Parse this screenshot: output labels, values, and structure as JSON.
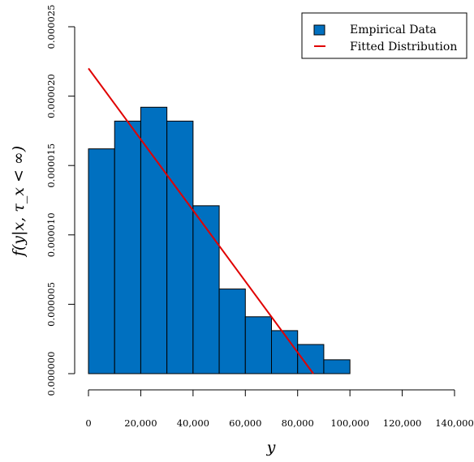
{
  "chart_data": {
    "type": "bar",
    "bin_width": 10000,
    "bins": [
      {
        "x0": 0,
        "x1": 10000,
        "density": 1.62e-05
      },
      {
        "x0": 10000,
        "x1": 20000,
        "density": 1.82e-05
      },
      {
        "x0": 20000,
        "x1": 30000,
        "density": 1.92e-05
      },
      {
        "x0": 30000,
        "x1": 40000,
        "density": 1.82e-05
      },
      {
        "x0": 40000,
        "x1": 50000,
        "density": 1.21e-05
      },
      {
        "x0": 50000,
        "x1": 60000,
        "density": 6.1e-06
      },
      {
        "x0": 60000,
        "x1": 70000,
        "density": 4.1e-06
      },
      {
        "x0": 70000,
        "x1": 80000,
        "density": 3.1e-06
      },
      {
        "x0": 80000,
        "x1": 90000,
        "density": 2.1e-06
      },
      {
        "x0": 90000,
        "x1": 100000,
        "density": 1e-06
      }
    ],
    "fitted_line": {
      "name": "Fitted Distribution",
      "points": [
        {
          "x": 0,
          "y": 2.2e-05
        },
        {
          "x": 86000,
          "y": 0.0
        }
      ]
    },
    "xlabel": "y",
    "ylabel": "f(y|x, τ_x < ∞)",
    "xlim": [
      0,
      140000
    ],
    "ylim": [
      0,
      2.5e-05
    ],
    "x_ticks": [
      0,
      20000,
      40000,
      60000,
      80000,
      100000,
      120000,
      140000
    ],
    "x_tick_labels": [
      "0",
      "20,000",
      "40,000",
      "60,000",
      "80,000",
      "100,000",
      "120,000",
      "140,000"
    ],
    "y_ticks": [
      0,
      5e-06,
      1e-05,
      1.5e-05,
      2e-05,
      2.5e-05
    ],
    "y_tick_labels": [
      "0.000000",
      "0.000005",
      "0.000010",
      "0.000015",
      "0.000020",
      "0.000025"
    ],
    "legend": {
      "placement": "top-right",
      "entries": [
        {
          "label": "Empirical Data",
          "kind": "box",
          "color": "#0070c0"
        },
        {
          "label": "Fitted Distribution",
          "kind": "line",
          "color": "#e00000"
        }
      ]
    },
    "colors": {
      "bar_fill": "#0070c0",
      "bar_edge": "#000000",
      "line": "#e00000"
    },
    "grid": false
  }
}
